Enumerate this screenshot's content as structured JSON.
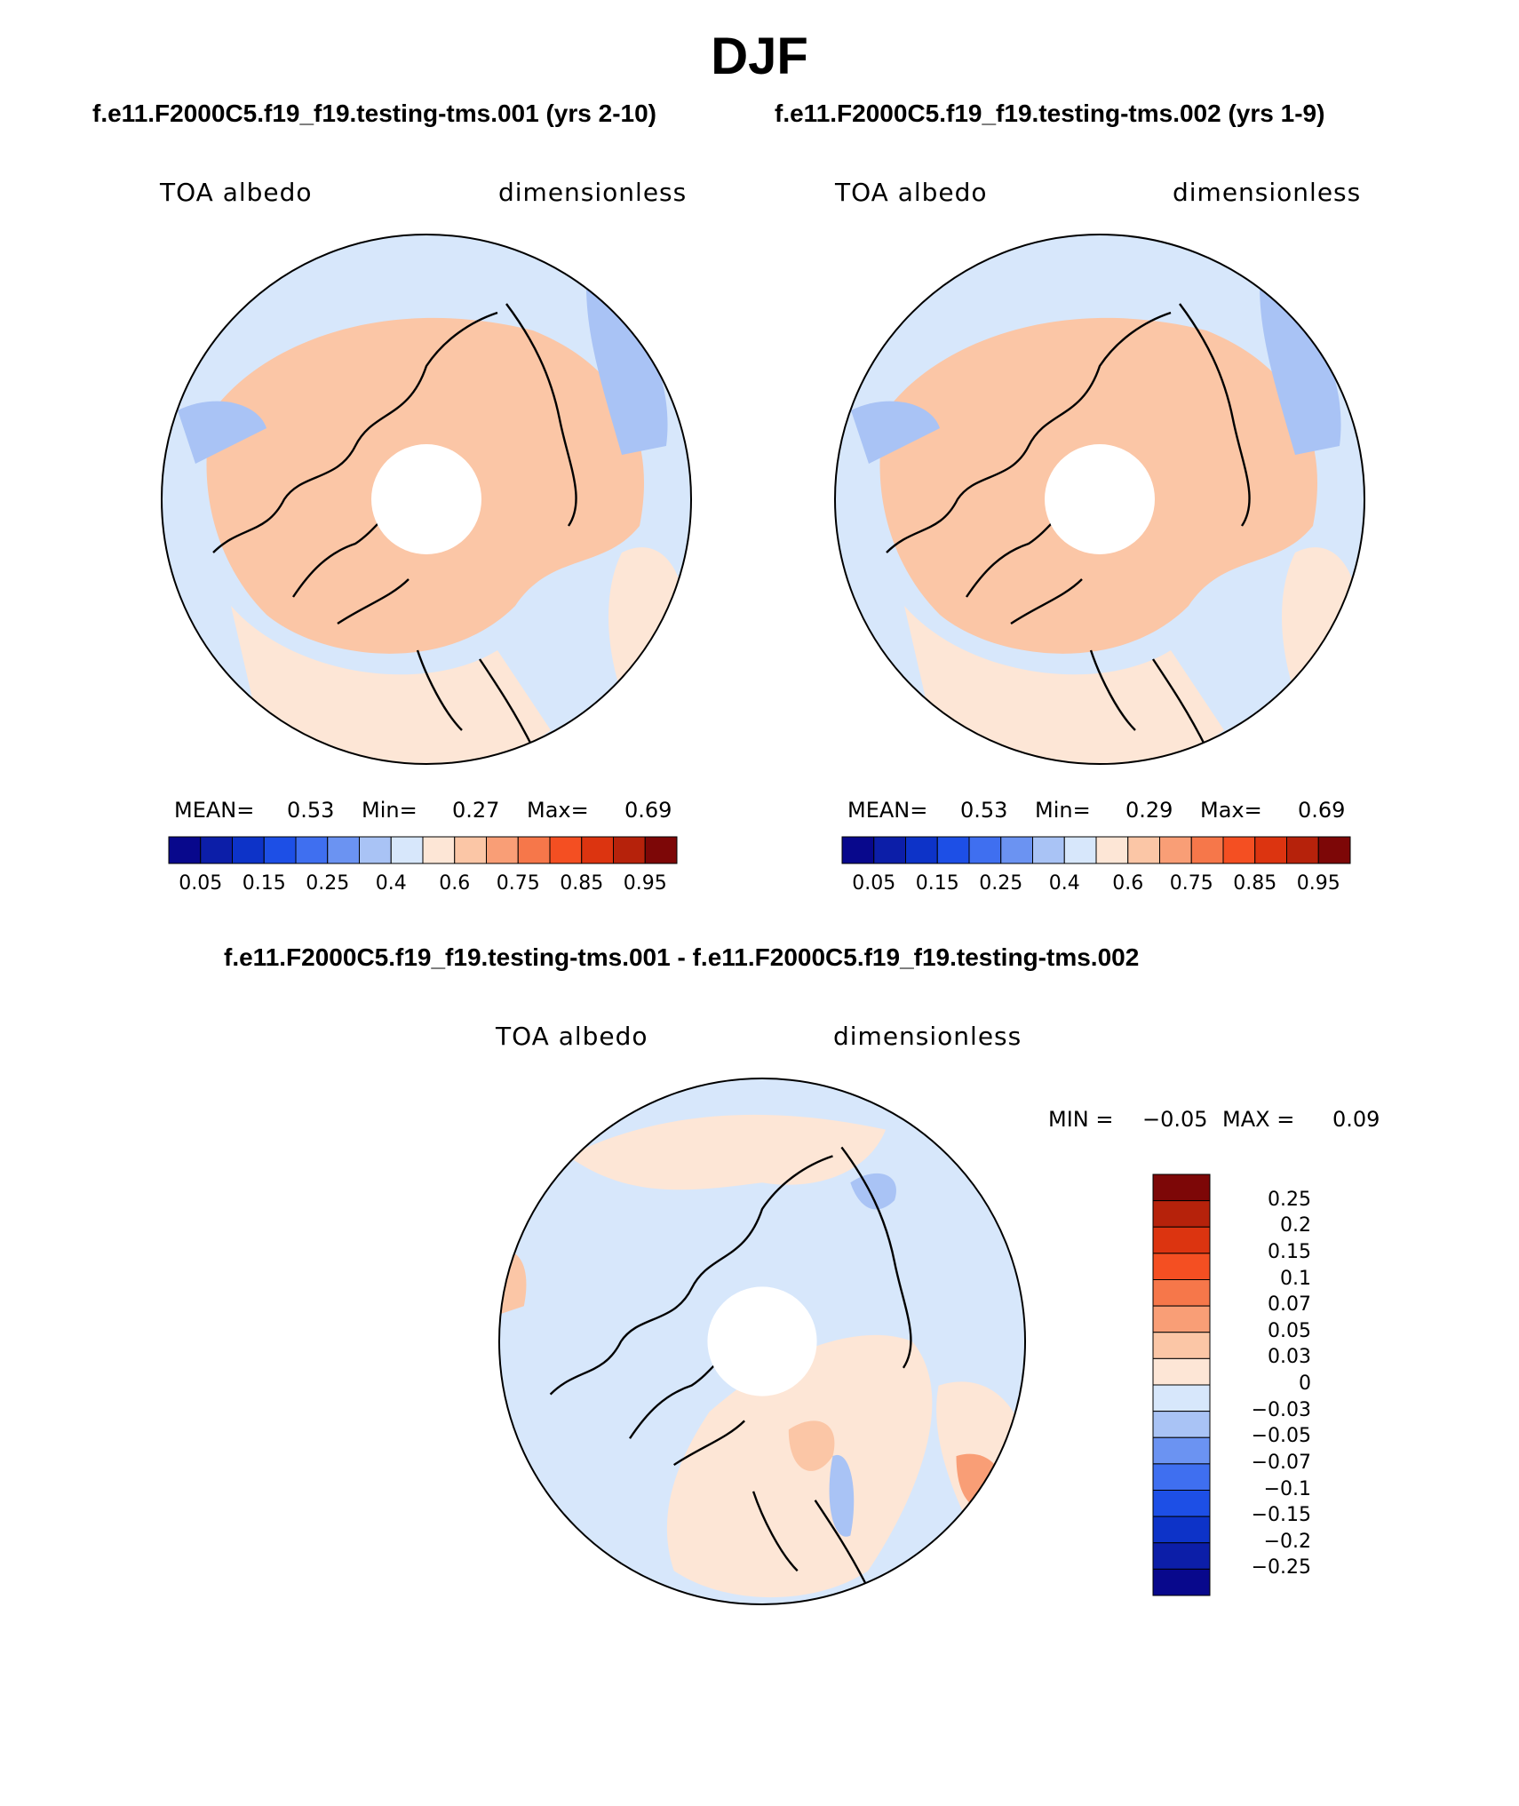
{
  "title": "DJF",
  "panels": [
    {
      "case_title": "f.e11.F2000C5.f19_f19.testing-tms.001 (yrs 2-10)",
      "left_label": "TOA albedo",
      "right_label": "dimensionless",
      "mean_label": "MEAN=",
      "mean": "0.53",
      "min_label": "Min=",
      "min": "0.27",
      "max_label": "Max=",
      "max": "0.69"
    },
    {
      "case_title": "f.e11.F2000C5.f19_f19.testing-tms.002 (yrs 1-9)",
      "left_label": "TOA albedo",
      "right_label": "dimensionless",
      "mean_label": "MEAN=",
      "mean": "0.53",
      "min_label": "Min=",
      "min": "0.29",
      "max_label": "Max=",
      "max": "0.69"
    }
  ],
  "diff": {
    "title": "f.e11.F2000C5.f19_f19.testing-tms.001 - f.e11.F2000C5.f19_f19.testing-tms.002",
    "left_label": "TOA albedo",
    "right_label": "dimensionless",
    "min_label": "MIN =",
    "min": "−0.05",
    "max_label": "MAX =",
    "max": "0.09"
  },
  "chart_data": [
    {
      "type": "heatmap",
      "projection": "north polar stereographic",
      "field": "TOA albedo",
      "units": "dimensionless",
      "mean": 0.53,
      "min": 0.27,
      "max": 0.69,
      "colorbar": {
        "tick_labels": [
          "0.05",
          "0.15",
          "0.25",
          "0.4",
          "0.6",
          "0.75",
          "0.85",
          "0.95"
        ],
        "levels": [
          0.05,
          0.1,
          0.15,
          0.2,
          0.25,
          0.3,
          0.4,
          0.5,
          0.6,
          0.7,
          0.75,
          0.8,
          0.85,
          0.9,
          0.95
        ],
        "colors": [
          "#08088c",
          "#0c1ea8",
          "#0d33c8",
          "#1d4fe6",
          "#3f6ff0",
          "#6b93f2",
          "#a9c3f5",
          "#d7e7fb",
          "#fde6d6",
          "#fbc6a6",
          "#f99e76",
          "#f6774a",
          "#f44f22",
          "#dc3410",
          "#b6220b",
          "#7d0707"
        ]
      }
    },
    {
      "type": "heatmap",
      "projection": "north polar stereographic",
      "field": "TOA albedo",
      "units": "dimensionless",
      "mean": 0.53,
      "min": 0.29,
      "max": 0.69,
      "colorbar": {
        "tick_labels": [
          "0.05",
          "0.15",
          "0.25",
          "0.4",
          "0.6",
          "0.75",
          "0.85",
          "0.95"
        ],
        "levels": [
          0.05,
          0.1,
          0.15,
          0.2,
          0.25,
          0.3,
          0.4,
          0.5,
          0.6,
          0.7,
          0.75,
          0.8,
          0.85,
          0.9,
          0.95
        ],
        "colors": [
          "#08088c",
          "#0c1ea8",
          "#0d33c8",
          "#1d4fe6",
          "#3f6ff0",
          "#6b93f2",
          "#a9c3f5",
          "#d7e7fb",
          "#fde6d6",
          "#fbc6a6",
          "#f99e76",
          "#f6774a",
          "#f44f22",
          "#dc3410",
          "#b6220b",
          "#7d0707"
        ]
      }
    },
    {
      "type": "heatmap",
      "projection": "north polar stereographic",
      "field": "TOA albedo difference",
      "units": "dimensionless",
      "min": -0.05,
      "max": 0.09,
      "colorbar": {
        "tick_labels": [
          "0.25",
          "0.2",
          "0.15",
          "0.1",
          "0.07",
          "0.05",
          "0.03",
          "0",
          "−0.03",
          "−0.05",
          "−0.07",
          "−0.1",
          "−0.15",
          "−0.2",
          "−0.25"
        ],
        "colors_top_to_bottom": [
          "#7d0707",
          "#b6220b",
          "#dc3410",
          "#f44f22",
          "#f6774a",
          "#f99e76",
          "#fbc6a6",
          "#fde6d6",
          "#d7e7fb",
          "#a9c3f5",
          "#6b93f2",
          "#3f6ff0",
          "#1d4fe6",
          "#0d33c8",
          "#0c1ea8",
          "#08088c"
        ]
      }
    }
  ]
}
